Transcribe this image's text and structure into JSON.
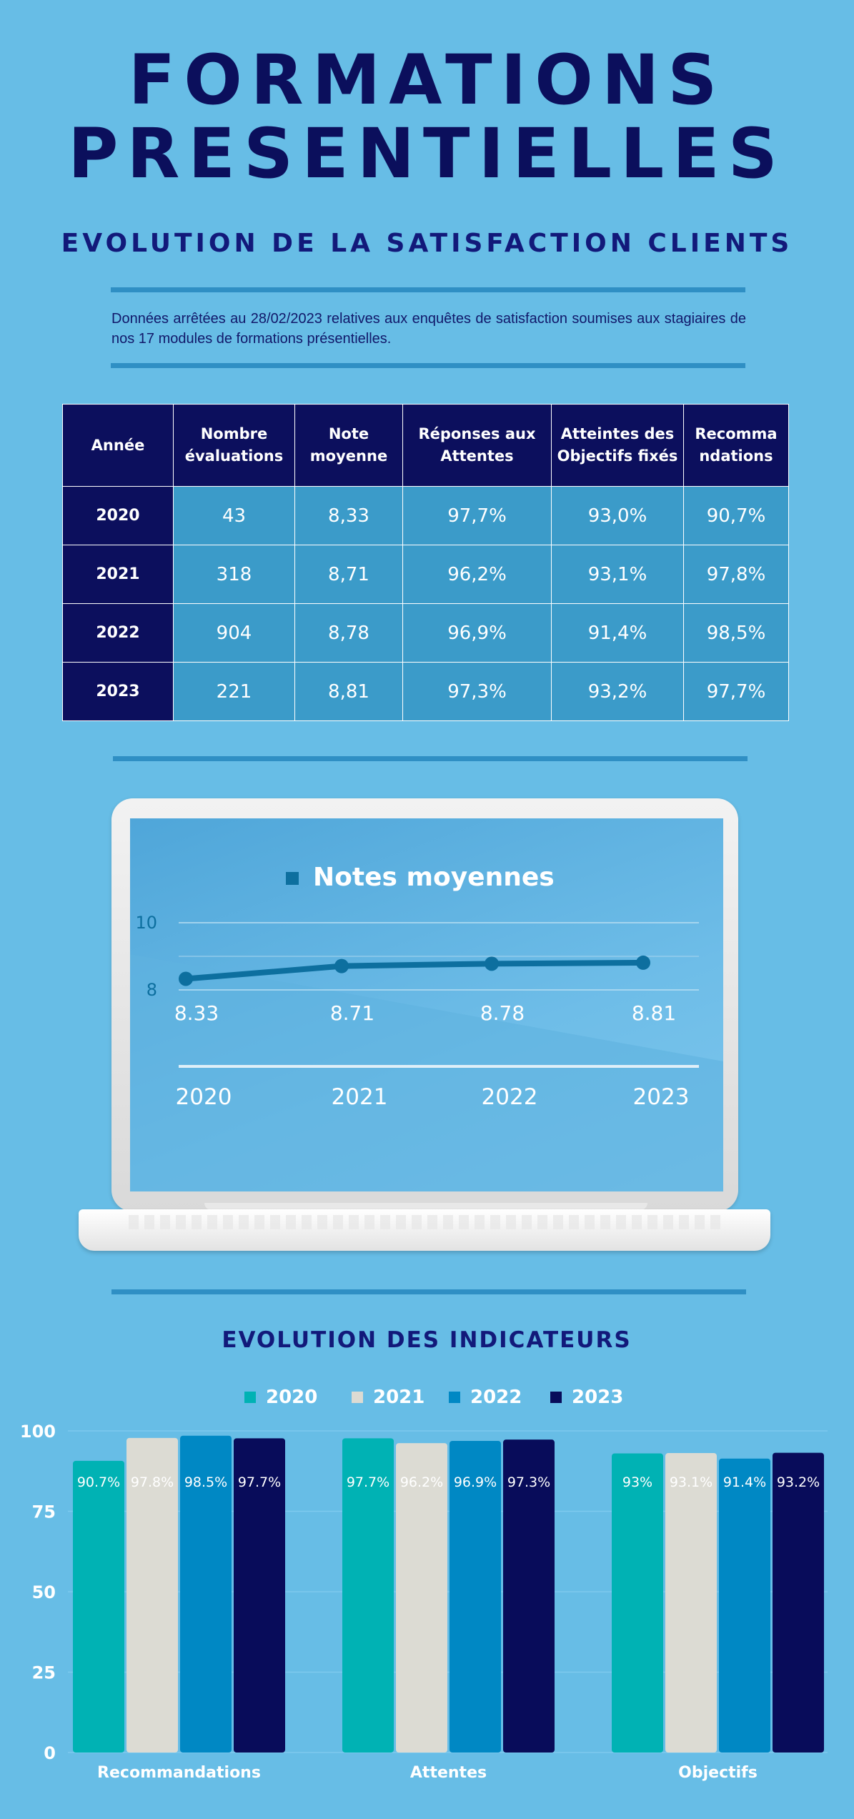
{
  "header": {
    "title_line1": "FORMATIONS",
    "title_line2": "PRESENTIELLES",
    "subtitle": "EVOLUTION DE LA SATISFACTION CLIENTS",
    "intro": "Données arrêtées au 28/02/2023 relatives aux enquêtes de satisfaction soumises aux stagiaires de nos 17 modules de formations présentielles."
  },
  "table": {
    "headers": [
      "Année",
      "Nombre évaluations",
      "Note moyenne",
      "Réponses aux Attentes",
      "Atteintes des Objectifs fixés",
      "Recomma ndations"
    ],
    "rows": [
      [
        "2020",
        "43",
        "8,33",
        "97,7%",
        "93,0%",
        "90,7%"
      ],
      [
        "2021",
        "318",
        "8,71",
        "96,2%",
        "93,1%",
        "97,8%"
      ],
      [
        "2022",
        "904",
        "8,78",
        "96,9%",
        "91,4%",
        "98,5%"
      ],
      [
        "2023",
        "221",
        "8,81",
        "97,3%",
        "93,2%",
        "97,7%"
      ]
    ]
  },
  "colors": {
    "background": "#67bde6",
    "navy": "#0c0f5d",
    "series_2020": "#00b2b4",
    "series_2021": "#dcdbd3",
    "series_2022": "#0088c4",
    "series_2023": "#080c5a",
    "line": "#0d6f9f"
  },
  "chart_data": [
    {
      "type": "line",
      "title": "Notes moyennes",
      "x": [
        "2020",
        "2021",
        "2022",
        "2023"
      ],
      "series": [
        {
          "name": "Notes moyennes",
          "values": [
            8.33,
            8.71,
            8.78,
            8.81
          ],
          "labels": [
            "8.33",
            "8.71",
            "8.78",
            "8.81"
          ]
        }
      ],
      "y_ticks": [
        "10",
        "8"
      ],
      "grid": true,
      "legend": "top-center"
    },
    {
      "type": "bar",
      "title": "EVOLUTION DES INDICATEURS",
      "categories": [
        "Recommandations",
        "Attentes",
        "Objectifs"
      ],
      "series": [
        {
          "name": "2020",
          "values": [
            90.7,
            97.7,
            93
          ],
          "labels": [
            "90.7%",
            "97.7%",
            "93%"
          ]
        },
        {
          "name": "2021",
          "values": [
            97.8,
            96.2,
            93.1
          ],
          "labels": [
            "97.8%",
            "96.2%",
            "93.1%"
          ]
        },
        {
          "name": "2022",
          "values": [
            98.5,
            96.9,
            91.4
          ],
          "labels": [
            "98.5%",
            "96.9%",
            "91.4%"
          ]
        },
        {
          "name": "2023",
          "values": [
            97.7,
            97.3,
            93.2
          ],
          "labels": [
            "97.7%",
            "97.3%",
            "93.2%"
          ]
        }
      ],
      "y_ticks": [
        "100",
        "75",
        "50",
        "25",
        "0"
      ],
      "ylim": [
        0,
        100
      ],
      "grid": true,
      "legend": "top-center"
    }
  ]
}
